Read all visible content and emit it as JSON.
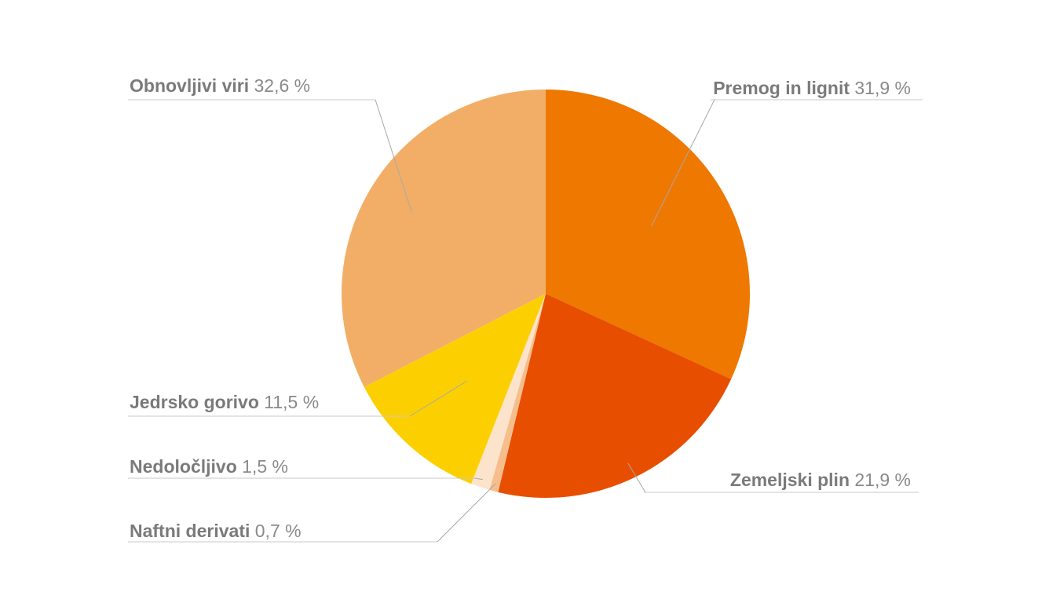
{
  "chart_data": {
    "type": "pie",
    "slices": [
      {
        "label": "Premog in lignit",
        "value": 31.9,
        "value_text": "31,9 %",
        "color": "#EE7800"
      },
      {
        "label": "Zemeljski plin",
        "value": 21.9,
        "value_text": "21,9 %",
        "color": "#E84E00"
      },
      {
        "label": "Naftni derivati",
        "value": 0.7,
        "value_text": "0,7 %",
        "color": "#F5BE8C"
      },
      {
        "label": "Nedoločljivo",
        "value": 1.5,
        "value_text": "1,5 %",
        "color": "#FCE4CC"
      },
      {
        "label": "Jedrsko gorivo",
        "value": 11.5,
        "value_text": "11,5 %",
        "color": "#FCD000"
      },
      {
        "label": "Obnovljivi viri",
        "value": 32.6,
        "value_text": "32,6 %",
        "color": "#F2AE66"
      }
    ],
    "start": "12 o'clock",
    "direction": "clockwise",
    "legend": "outside labels with leader lines"
  }
}
